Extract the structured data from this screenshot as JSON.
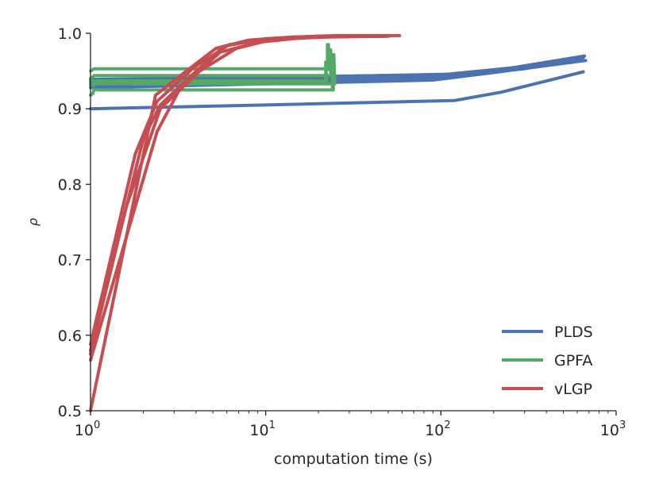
{
  "chart_data": {
    "type": "line",
    "title": "",
    "xlabel": "computation time (s)",
    "ylabel": "ρ",
    "xscale": "log",
    "xlim": [
      1,
      1000
    ],
    "ylim": [
      0.5,
      1.0
    ],
    "x_ticks": [
      {
        "base": "10",
        "exp": "0",
        "value": 1
      },
      {
        "base": "10",
        "exp": "1",
        "value": 10
      },
      {
        "base": "10",
        "exp": "2",
        "value": 100
      },
      {
        "base": "10",
        "exp": "3",
        "value": 1000
      }
    ],
    "y_ticks": [
      "0.5",
      "0.6",
      "0.7",
      "0.8",
      "0.9",
      "1.0"
    ],
    "legend_position": "lower-right",
    "series": [
      {
        "name": "PLDS",
        "color": "#4c72b0",
        "runs": [
          {
            "x": [
              1,
              10,
              120,
              220,
              650
            ],
            "y": [
              0.9,
              0.905,
              0.911,
              0.922,
              0.949
            ]
          },
          {
            "x": [
              1,
              10,
              90,
              200,
              670
            ],
            "y": [
              0.928,
              0.933,
              0.938,
              0.948,
              0.964
            ]
          },
          {
            "x": [
              1,
              10,
              100,
              300,
              640
            ],
            "y": [
              0.932,
              0.936,
              0.942,
              0.953,
              0.967
            ]
          },
          {
            "x": [
              1,
              10,
              110,
              250,
              660
            ],
            "y": [
              0.935,
              0.939,
              0.944,
              0.954,
              0.97
            ]
          },
          {
            "x": [
              1,
              10,
              120,
              300,
              650
            ],
            "y": [
              0.937,
              0.941,
              0.946,
              0.956,
              0.968
            ]
          },
          {
            "x": [
              1,
              10,
              100,
              280,
              630
            ],
            "y": [
              0.939,
              0.942,
              0.945,
              0.955,
              0.966
            ]
          }
        ]
      },
      {
        "name": "GPFA",
        "color": "#55a868",
        "runs": [
          {
            "x": [
              1,
              1.03,
              1.05,
              1.1,
              24,
              24,
              24.3,
              24.3
            ],
            "y": [
              0.918,
              0.92,
              0.926,
              0.925,
              0.925,
              0.97,
              0.965,
              0.925
            ]
          },
          {
            "x": [
              1,
              1.05,
              22.5,
              22.5,
              22.8,
              22.8,
              23,
              23
            ],
            "y": [
              0.95,
              0.953,
              0.953,
              0.985,
              0.985,
              0.955,
              0.975,
              0.952
            ]
          },
          {
            "x": [
              1,
              1.05,
              23.5,
              23.5,
              23.8
            ],
            "y": [
              0.94,
              0.944,
              0.944,
              0.978,
              0.944
            ]
          },
          {
            "x": [
              1,
              1.1,
              22,
              22,
              22.3
            ],
            "y": [
              0.936,
              0.937,
              0.937,
              0.962,
              0.937
            ]
          },
          {
            "x": [
              1,
              1.08,
              24.5,
              24.5,
              24.8
            ],
            "y": [
              0.931,
              0.933,
              0.933,
              0.972,
              0.933
            ]
          }
        ]
      },
      {
        "name": "vLGP",
        "color": "#c44e52",
        "runs": [
          {
            "x": [
              1,
              2.35,
              3.1,
              5.2,
              8,
              14,
              25,
              58
            ],
            "y": [
              0.5,
              0.918,
              0.94,
              0.98,
              0.991,
              0.995,
              0.997,
              0.997
            ]
          },
          {
            "x": [
              1,
              2.4,
              3.3,
              5.5,
              9,
              16,
              30,
              52
            ],
            "y": [
              0.567,
              0.87,
              0.93,
              0.975,
              0.988,
              0.994,
              0.996,
              0.997
            ]
          },
          {
            "x": [
              1,
              1.8,
              2.4,
              3.9,
              6.2,
              10,
              20,
              50
            ],
            "y": [
              0.588,
              0.84,
              0.91,
              0.955,
              0.985,
              0.993,
              0.996,
              0.996
            ]
          },
          {
            "x": [
              1,
              1.6,
              2.5,
              4.2,
              6.8,
              11,
              22,
              48
            ],
            "y": [
              0.575,
              0.77,
              0.9,
              0.95,
              0.98,
              0.992,
              0.995,
              0.996
            ]
          },
          {
            "x": [
              1,
              2.0,
              2.5,
              3.8,
              5.8,
              9.5,
              19,
              45
            ],
            "y": [
              0.58,
              0.86,
              0.905,
              0.945,
              0.983,
              0.992,
              0.996,
              0.996
            ]
          }
        ]
      }
    ]
  }
}
